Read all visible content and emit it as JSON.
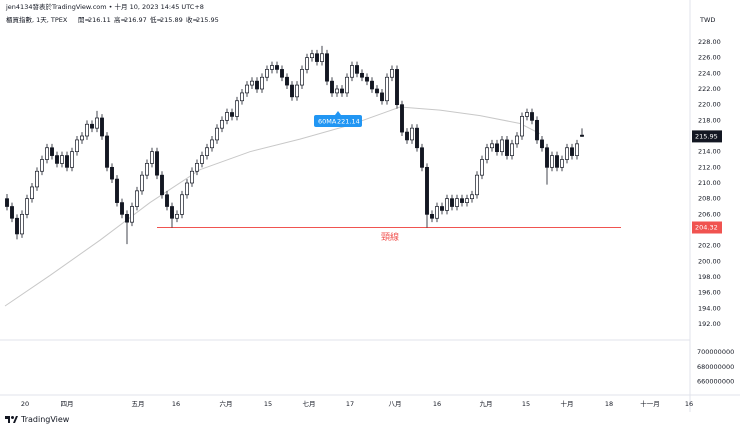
{
  "chart_data": {
    "type": "candlestick",
    "attribution": "jen4134發表於TradingView.com • 十月 10, 2023 14:45 UTC+8",
    "symbol": "櫃買指數, 1天, TPEX",
    "ohlc_labels": [
      "開=",
      "高=",
      "低=",
      "收="
    ],
    "currency": "TWD",
    "logo": "TradingView",
    "up_color": "#ffffff",
    "down_color": "#131722",
    "outline_color": "#131722",
    "xlim": [
      -1.4,
      136.6
    ],
    "xticks": [
      {
        "value": 3.6,
        "label": "20"
      },
      {
        "value": 12,
        "label": "四月"
      },
      {
        "value": 26.2,
        "label": "五月"
      },
      {
        "value": 33.8,
        "label": "16"
      },
      {
        "value": 43.8,
        "label": "六月"
      },
      {
        "value": 52.2,
        "label": "15"
      },
      {
        "value": 60.4,
        "label": "七月"
      },
      {
        "value": 68.6,
        "label": "17"
      },
      {
        "value": 77.6,
        "label": "八月"
      },
      {
        "value": 86,
        "label": "16"
      },
      {
        "value": 95.8,
        "label": "九月"
      },
      {
        "value": 103.8,
        "label": "15"
      },
      {
        "value": 112,
        "label": "十月"
      },
      {
        "value": 120.4,
        "label": "18"
      },
      {
        "value": 128.6,
        "label": "十一月"
      },
      {
        "value": 136.4,
        "label": "16"
      }
    ],
    "ylim": [
      189.96,
      233.36
    ],
    "yticks": [
      {
        "value": 228,
        "label": "228.00"
      },
      {
        "value": 226,
        "label": "226.00"
      },
      {
        "value": 224,
        "label": "224.00"
      },
      {
        "value": 222,
        "label": "222.00"
      },
      {
        "value": 220,
        "label": "220.00"
      },
      {
        "value": 218,
        "label": "218.00"
      },
      {
        "value": 216,
        "label": "216.00"
      },
      {
        "value": 214,
        "label": "214.00"
      },
      {
        "value": 212,
        "label": "212.00"
      },
      {
        "value": 210,
        "label": "210.00"
      },
      {
        "value": 208,
        "label": "208.00"
      },
      {
        "value": 206,
        "label": "206.00"
      },
      {
        "value": 204,
        "label": "204.00"
      },
      {
        "value": 202,
        "label": "202.00"
      },
      {
        "value": 200,
        "label": "200.00"
      },
      {
        "value": 198,
        "label": "198.00"
      },
      {
        "value": 196,
        "label": "196.00"
      },
      {
        "value": 194,
        "label": "194.00"
      },
      {
        "value": 192,
        "label": "192.00"
      }
    ],
    "volume_ylim": [
      642000000,
      716000000
    ],
    "volume_yticks": [
      700000000,
      680000000,
      660000000
    ],
    "candles": [
      [
        208,
        208.6,
        206.5,
        207
      ],
      [
        207,
        207.5,
        205,
        205.5
      ],
      [
        205.5,
        206,
        202.8,
        203.5
      ],
      [
        203.5,
        206.5,
        203,
        206
      ],
      [
        206,
        208.5,
        205.5,
        208
      ],
      [
        208,
        210,
        207.5,
        209.5
      ],
      [
        209.5,
        212,
        209,
        211.5
      ],
      [
        211.5,
        213.5,
        211,
        213
      ],
      [
        213,
        215,
        212.5,
        214.5
      ],
      [
        214.5,
        215,
        213,
        213.5
      ],
      [
        213.5,
        214,
        212,
        212.5
      ],
      [
        212.5,
        214,
        212,
        213.5
      ],
      [
        213.5,
        214,
        211.5,
        212
      ],
      [
        212,
        214.5,
        211.5,
        214
      ],
      [
        214,
        216,
        213.5,
        215.5
      ],
      [
        215.5,
        216.5,
        215,
        216
      ],
      [
        216,
        218,
        215.5,
        217.5
      ],
      [
        217.5,
        218,
        216.5,
        217
      ],
      [
        217,
        219.2,
        216.5,
        218.3
      ],
      [
        218.3,
        218.8,
        215.5,
        216
      ],
      [
        216,
        216.5,
        211.5,
        212
      ],
      [
        212,
        212.5,
        210,
        210.5
      ],
      [
        210.5,
        211,
        207,
        207.5
      ],
      [
        207.5,
        208,
        205.5,
        206
      ],
      [
        206,
        206.5,
        202.2,
        205
      ],
      [
        205,
        207.5,
        204.5,
        207
      ],
      [
        207,
        209.5,
        206.5,
        209
      ],
      [
        209,
        211.5,
        208.5,
        211
      ],
      [
        211,
        213,
        210.5,
        212.5
      ],
      [
        212.5,
        214.5,
        212,
        214
      ],
      [
        214,
        214.5,
        210.5,
        211
      ],
      [
        211,
        211.5,
        208,
        208.5
      ],
      [
        208.5,
        209,
        206.5,
        207
      ],
      [
        207,
        207.5,
        204.3,
        205.5
      ],
      [
        205.5,
        206.5,
        205,
        206
      ],
      [
        206,
        209,
        205.5,
        208.5
      ],
      [
        208.5,
        210.5,
        208,
        210
      ],
      [
        210,
        212,
        209.5,
        211.5
      ],
      [
        211.5,
        213,
        211,
        212.5
      ],
      [
        212.5,
        214,
        212,
        213.5
      ],
      [
        213.5,
        215,
        213,
        214.5
      ],
      [
        214.5,
        216,
        214,
        215.5
      ],
      [
        215.5,
        217.5,
        215,
        217
      ],
      [
        217,
        218.5,
        216.5,
        218
      ],
      [
        218,
        219.5,
        217.5,
        219
      ],
      [
        219,
        219.5,
        218,
        218.5
      ],
      [
        218.5,
        221,
        218,
        220.5
      ],
      [
        220.5,
        222,
        220,
        221.5
      ],
      [
        221.5,
        223,
        221,
        222.5
      ],
      [
        222.5,
        223.5,
        222,
        223
      ],
      [
        223,
        223.5,
        221.5,
        222
      ],
      [
        222,
        224,
        221.5,
        223.5
      ],
      [
        223.5,
        225,
        223,
        224.5
      ],
      [
        224.5,
        225.5,
        224,
        225
      ],
      [
        225,
        225.5,
        224,
        224.5
      ],
      [
        224.5,
        225,
        223,
        223.5
      ],
      [
        223.5,
        224,
        222,
        222.5
      ],
      [
        222.5,
        223,
        220.5,
        221
      ],
      [
        221,
        223,
        220.5,
        222.5
      ],
      [
        222.5,
        225,
        222,
        224.5
      ],
      [
        224.5,
        226.5,
        224,
        226
      ],
      [
        226,
        227,
        225.5,
        226.5
      ],
      [
        226.5,
        227,
        225,
        225.5
      ],
      [
        225.5,
        227.5,
        225,
        226.5
      ],
      [
        226.5,
        227,
        222.5,
        223
      ],
      [
        223,
        223.5,
        221,
        221.5
      ],
      [
        221.5,
        222.5,
        221,
        222
      ],
      [
        222,
        222.5,
        221,
        221.5
      ],
      [
        221.5,
        224,
        221,
        223.5
      ],
      [
        223.5,
        225.5,
        223,
        225
      ],
      [
        225,
        225.5,
        223.5,
        224
      ],
      [
        224,
        224.5,
        223,
        223.5
      ],
      [
        223.5,
        224,
        222.5,
        223
      ],
      [
        223,
        223.5,
        221.5,
        222
      ],
      [
        222,
        222.5,
        221,
        221.5
      ],
      [
        221.5,
        222,
        220,
        220.5
      ],
      [
        220.5,
        224,
        220,
        223.5
      ],
      [
        223.5,
        225,
        223,
        224.5
      ],
      [
        224.5,
        225,
        219.5,
        220
      ],
      [
        220,
        220.5,
        216,
        216.5
      ],
      [
        216.5,
        217,
        215,
        215.5
      ],
      [
        215.5,
        217.5,
        215,
        217
      ],
      [
        217,
        217.5,
        214,
        214.5
      ],
      [
        214.5,
        215,
        211.5,
        212
      ],
      [
        212,
        212.5,
        204.3,
        206
      ],
      [
        206,
        206.5,
        205,
        205.5
      ],
      [
        205.5,
        207.5,
        205,
        207
      ],
      [
        207,
        207.5,
        206,
        206.5
      ],
      [
        206.5,
        208.5,
        206,
        208
      ],
      [
        208,
        208.5,
        206.5,
        207
      ],
      [
        207,
        208.5,
        206.5,
        208
      ],
      [
        208,
        208.5,
        207,
        207.5
      ],
      [
        207.5,
        208.5,
        207,
        208
      ],
      [
        208,
        209,
        207.5,
        208.5
      ],
      [
        208.5,
        211.5,
        208,
        211
      ],
      [
        211,
        213.5,
        210.5,
        213
      ],
      [
        213,
        215,
        212.5,
        214.5
      ],
      [
        214.5,
        215.5,
        214,
        215
      ],
      [
        215,
        215.5,
        213.5,
        214
      ],
      [
        214,
        216,
        213.5,
        215.5
      ],
      [
        215.5,
        216,
        213,
        213.5
      ],
      [
        213.5,
        215.5,
        213,
        215
      ],
      [
        215,
        216.5,
        214.5,
        216
      ],
      [
        216,
        219,
        215.5,
        218.5
      ],
      [
        218.5,
        219.5,
        218,
        219
      ],
      [
        219,
        219.5,
        217.5,
        218
      ],
      [
        218,
        218.5,
        215,
        215.5
      ],
      [
        215.5,
        216,
        214,
        214.5
      ],
      [
        214.5,
        215,
        209.8,
        212
      ],
      [
        212,
        214,
        211.5,
        213.5
      ],
      [
        213.5,
        214,
        211.5,
        212
      ],
      [
        212,
        213.5,
        211.5,
        213
      ],
      [
        213,
        215,
        212.5,
        214.5
      ],
      [
        214.5,
        215,
        213,
        213.5
      ],
      [
        213.5,
        215.5,
        213,
        215
      ],
      [
        216.11,
        216.97,
        215.89,
        215.95
      ]
    ],
    "ma": {
      "name": "60MA",
      "current": 221.14,
      "color": "#c8c8c8",
      "label_color": "#2196f3",
      "x": [
        -0.4,
        8.6,
        18.6,
        28.6,
        38.6,
        48.6,
        58.6,
        68.6,
        78.6,
        86.6,
        94.6,
        102.6,
        106.6
      ],
      "values": [
        194.3,
        198.2,
        202.7,
        207.5,
        211.7,
        214.0,
        215.6,
        217.4,
        219.7,
        219.3,
        218.6,
        217.6,
        216.3
      ]
    },
    "neckline": {
      "value": 204.32,
      "label": "頸線",
      "color": "#f05350",
      "x": [
        30,
        122.8
      ]
    }
  }
}
